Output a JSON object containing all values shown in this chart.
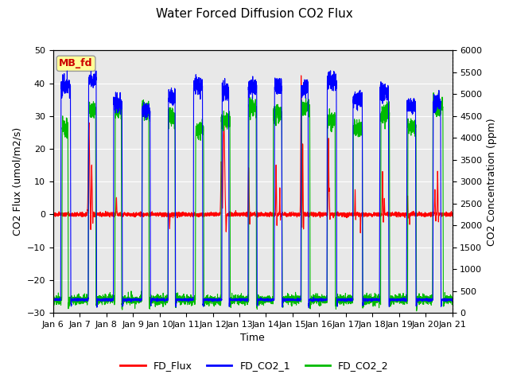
{
  "title": "Water Forced Diffusion CO2 Flux",
  "xlabel": "Time",
  "ylabel_left": "CO2 Flux (umol/m2/s)",
  "ylabel_right": "CO2 Concentration (ppm)",
  "ylim_left": [
    -30,
    50
  ],
  "ylim_right": [
    0,
    6000
  ],
  "yticks_left": [
    -30,
    -20,
    -10,
    0,
    10,
    20,
    30,
    40,
    50
  ],
  "yticks_right": [
    0,
    500,
    1000,
    1500,
    2000,
    2500,
    3000,
    3500,
    4000,
    4500,
    5000,
    5500,
    6000
  ],
  "xtick_labels": [
    "Jan 6",
    "Jan 7",
    "Jan 8",
    "Jan 9",
    "Jan 10",
    "Jan 11",
    "Jan 12",
    "Jan 13",
    "Jan 14",
    "Jan 15",
    "Jan 16",
    "Jan 17",
    "Jan 18",
    "Jan 19",
    "Jan 20",
    "Jan 21"
  ],
  "annotation_text": "MB_fd",
  "annotation_color": "#cc0000",
  "annotation_bg": "#ffff99",
  "plot_bg_color": "#e8e8e8",
  "fig_bg_color": "#ffffff",
  "line_colors": {
    "FD_Flux": "#ff0000",
    "FD_CO2_1": "#0000ff",
    "FD_CO2_2": "#00bb00"
  },
  "legend_labels": [
    "FD_Flux",
    "FD_CO2_1",
    "FD_CO2_2"
  ],
  "n_days": 15,
  "pts_per_day": 288,
  "co2_baseline": 300,
  "co2_1_peak": 5400,
  "co2_2_peak": 4800,
  "flux_baseline": 0.0,
  "grid_color": "#ffffff",
  "title_fontsize": 11,
  "label_fontsize": 9,
  "tick_fontsize": 8,
  "legend_fontsize": 9,
  "linewidth": 0.8
}
